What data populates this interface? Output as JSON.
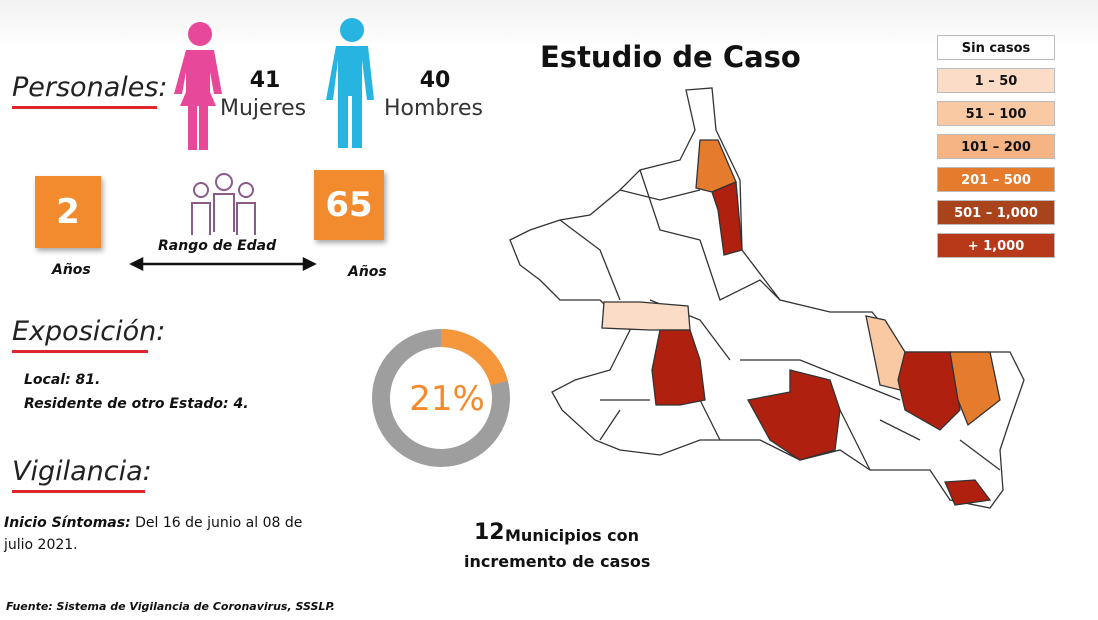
{
  "personales": {
    "heading": "Personales:",
    "women_count": "41",
    "women_label": "Mujeres",
    "men_count": "40",
    "men_label": "Hombres"
  },
  "age_range": {
    "min": "2",
    "min_unit": "Años",
    "max": "65",
    "max_unit": "Años",
    "label": "Rango de Edad"
  },
  "exposicion": {
    "heading": "Exposición:",
    "local": "Local: 81.",
    "other_state": "Residente de otro Estado: 4."
  },
  "vigilancia": {
    "heading": "Vigilancia:",
    "onset_label": "Inicio Síntomas:",
    "onset_text": "Del 16 de junio al 08 de julio 2021."
  },
  "donut": {
    "value": 21,
    "label": "21%",
    "color": "#f5963a",
    "track_color": "#9e9e9e"
  },
  "map": {
    "title": "Estudio de Caso",
    "legend": [
      {
        "label": "Sin casos",
        "color": "#ffffff"
      },
      {
        "label": "1 – 50",
        "color": "#fbdcc6"
      },
      {
        "label": "51 – 100",
        "color": "#f9c9a4"
      },
      {
        "label": "101 – 200",
        "color": "#f6b383"
      },
      {
        "label": "201 – 500",
        "color": "#e57b2c"
      },
      {
        "label": "501 – 1,000",
        "color": "#a8431c"
      },
      {
        "label": "+ 1,000",
        "color": "#b8381a"
      }
    ]
  },
  "summary": {
    "count": "12",
    "text_line1": "Municipios con",
    "text_line2": "incremento de casos"
  },
  "source": "Fuente: Sistema de Vigilancia de Coronavirus, SSSLP."
}
